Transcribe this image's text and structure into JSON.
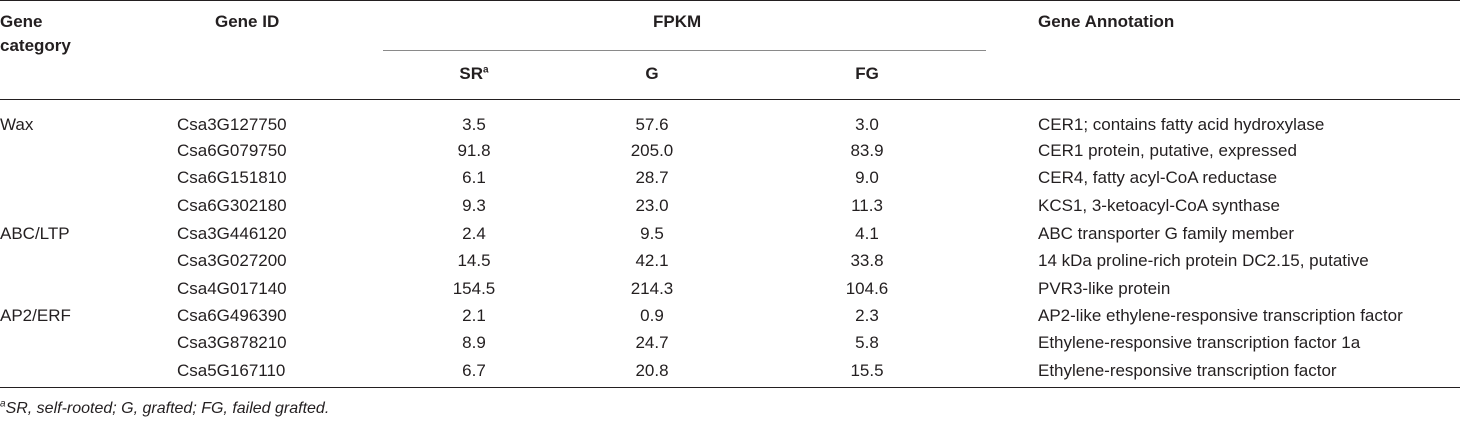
{
  "headers": {
    "category": "Gene category",
    "gene_id": "Gene ID",
    "fpkm": "FPKM",
    "sr": "SR",
    "sr_sup": "a",
    "g": "G",
    "fg": "FG",
    "annotation": "Gene Annotation"
  },
  "rows": [
    {
      "category": "Wax",
      "gene_id": "Csa3G127750",
      "sr": "3.5",
      "g": "57.6",
      "fg": "3.0",
      "annotation": "CER1; contains fatty acid hydroxylase"
    },
    {
      "category": "",
      "gene_id": "Csa6G079750",
      "sr": "91.8",
      "g": "205.0",
      "fg": "83.9",
      "annotation": "CER1 protein, putative, expressed"
    },
    {
      "category": "",
      "gene_id": "Csa6G151810",
      "sr": "6.1",
      "g": "28.7",
      "fg": "9.0",
      "annotation": "CER4, fatty acyl-CoA reductase"
    },
    {
      "category": "",
      "gene_id": "Csa6G302180",
      "sr": "9.3",
      "g": "23.0",
      "fg": "11.3",
      "annotation": "KCS1, 3-ketoacyl-CoA synthase"
    },
    {
      "category": "ABC/LTP",
      "gene_id": "Csa3G446120",
      "sr": "2.4",
      "g": "9.5",
      "fg": "4.1",
      "annotation": "ABC transporter G family member"
    },
    {
      "category": "",
      "gene_id": "Csa3G027200",
      "sr": "14.5",
      "g": "42.1",
      "fg": "33.8",
      "annotation": "14 kDa proline-rich protein DC2.15, putative"
    },
    {
      "category": "",
      "gene_id": "Csa4G017140",
      "sr": "154.5",
      "g": "214.3",
      "fg": "104.6",
      "annotation": "PVR3-like protein"
    },
    {
      "category": "AP2/ERF",
      "gene_id": "Csa6G496390",
      "sr": "2.1",
      "g": "0.9",
      "fg": "2.3",
      "annotation": "AP2-like ethylene-responsive transcription factor"
    },
    {
      "category": "",
      "gene_id": "Csa3G878210",
      "sr": "8.9",
      "g": "24.7",
      "fg": "5.8",
      "annotation": "Ethylene-responsive transcription factor 1a"
    },
    {
      "category": "",
      "gene_id": "Csa5G167110",
      "sr": "6.7",
      "g": "20.8",
      "fg": "15.5",
      "annotation": "Ethylene-responsive transcription factor"
    }
  ],
  "footnote": {
    "marker": "a",
    "text": "SR, self-rooted; G, grafted; FG, failed grafted."
  }
}
